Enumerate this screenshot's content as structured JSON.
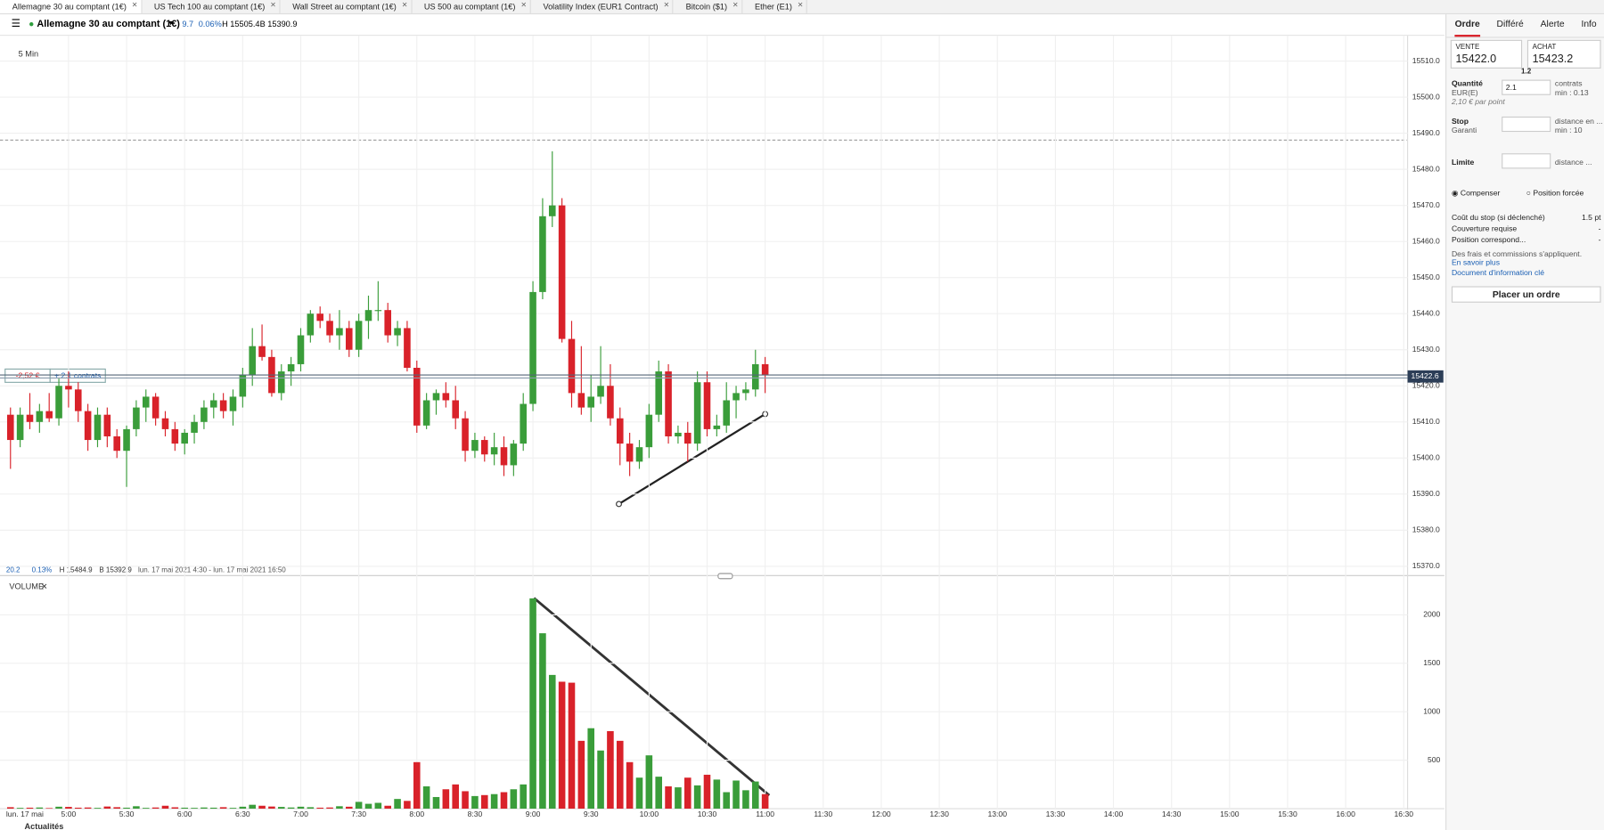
{
  "tabs": [
    "Allemagne 30 au comptant (1€)",
    "US Tech 100 au comptant (1€)",
    "Wall Street au comptant (1€)",
    "US 500 au comptant (1€)",
    "Volatility Index (EUR1 Contract)",
    "Bitcoin ($1)",
    "Ether (E1)"
  ],
  "header": {
    "instrument": "Allemagne 30 au comptant (1€)",
    "change": "9.7",
    "change_pct": "0.06%",
    "high": "H 15505.4",
    "low": "B 15390.9"
  },
  "chart": {
    "interval": "5 Min",
    "info": {
      "change": "20.2",
      "change_pct": "0.13%",
      "high": "H 15484.9",
      "low": "B 15392.9",
      "range": "lun. 17 mai 2021 4:30 - lun. 17 mai 2021 16:50"
    },
    "position": {
      "pnl": "-2,52 €",
      "size": "+ 2.1 contrats"
    },
    "current_price": 15422.6,
    "ylim": [
      15368,
      15517
    ],
    "yticks": [
      {
        "value": 15370,
        "label": "15370.0"
      },
      {
        "value": 15380,
        "label": "15380.0"
      },
      {
        "value": 15390,
        "label": "15390.0"
      },
      {
        "value": 15400,
        "label": "15400.0"
      },
      {
        "value": 15410,
        "label": "15410.0"
      },
      {
        "value": 15420,
        "label": "15420.0"
      },
      {
        "value": 15430,
        "label": "15430.0"
      },
      {
        "value": 15440,
        "label": "15440.0"
      },
      {
        "value": 15450,
        "label": "15450.0"
      },
      {
        "value": 15460,
        "label": "15460.0"
      },
      {
        "value": 15470,
        "label": "15470.0"
      },
      {
        "value": 15480,
        "label": "15480.0"
      },
      {
        "value": 15490,
        "label": "15490.0"
      },
      {
        "value": 15500,
        "label": "15500.0"
      },
      {
        "value": 15510,
        "label": "15510.0"
      }
    ],
    "xticks": [
      "5:00",
      "5:30",
      "6:00",
      "6:30",
      "7:00",
      "7:30",
      "8:00",
      "8:30",
      "9:00",
      "9:30",
      "10:00",
      "10:30",
      "11:00",
      "11:30",
      "12:00",
      "12:30",
      "13:00",
      "13:30",
      "14:00",
      "14:30",
      "15:00",
      "15:30",
      "16:00",
      "16:30"
    ],
    "candles": {
      "open": [
        15412,
        15405,
        15412,
        15410,
        15413,
        15411,
        15420,
        15419,
        15413,
        15405,
        15412,
        15406,
        15402,
        15408,
        15414,
        15417,
        15411,
        15408,
        15404,
        15407,
        15410,
        15414,
        15416,
        15413,
        15417,
        15423,
        15431,
        15428,
        15418,
        15424,
        15426,
        15434,
        15440,
        15438,
        15434,
        15436,
        15430,
        15438,
        15441,
        15441,
        15434,
        15436,
        15425,
        15409,
        15416,
        15418,
        15416,
        15411,
        15402,
        15405,
        15401,
        15403,
        15398,
        15404,
        15415,
        15446,
        15467,
        15470,
        15433,
        15418,
        15414,
        15417,
        15420,
        15411,
        15404,
        15399,
        15403,
        15412,
        15424,
        15406,
        15407,
        15404,
        15421,
        15408,
        15409,
        15416,
        15418,
        15419,
        15426
      ],
      "high": [
        15414,
        15414,
        15418,
        15415,
        15418,
        15422,
        15424,
        15421,
        15415,
        15414,
        15414,
        15408,
        15409,
        15416,
        15419,
        15418,
        15413,
        15410,
        15408,
        15412,
        15416,
        15418,
        15418,
        15419,
        15425,
        15436,
        15437,
        15430,
        15426,
        15428,
        15436,
        15441,
        15442,
        15440,
        15441,
        15438,
        15440,
        15445,
        15449,
        15443,
        15438,
        15438,
        15427,
        15418,
        15419,
        15421,
        15420,
        15413,
        15407,
        15406,
        15407,
        15406,
        15405,
        15418,
        15449,
        15472,
        15485,
        15472,
        15438,
        15431,
        15423,
        15431,
        15426,
        15414,
        15407,
        15405,
        15415,
        15427,
        15426,
        15409,
        15410,
        15424,
        15424,
        15412,
        15421,
        15420,
        15421,
        15430,
        15428
      ],
      "low": [
        15397,
        15403,
        15408,
        15407,
        15410,
        15409,
        15414,
        15410,
        15402,
        15403,
        15403,
        15400,
        15392,
        15406,
        15410,
        15409,
        15406,
        15402,
        15401,
        15404,
        15408,
        15411,
        15411,
        15409,
        15414,
        15420,
        15427,
        15417,
        15416,
        15420,
        15424,
        15432,
        15436,
        15432,
        15430,
        15428,
        15428,
        15433,
        15438,
        15432,
        15431,
        15424,
        15407,
        15408,
        15412,
        15414,
        15408,
        15399,
        15400,
        15399,
        15398,
        15395,
        15395,
        15402,
        15413,
        15444,
        15464,
        15432,
        15414,
        15412,
        15410,
        15415,
        15409,
        15398,
        15395,
        15397,
        15400,
        15410,
        15404,
        15404,
        15399,
        15402,
        15406,
        15406,
        15407,
        15411,
        15416,
        15417,
        15418
      ],
      "close": [
        15405,
        15412,
        15410,
        15413,
        15411,
        15420,
        15419,
        15413,
        15405,
        15412,
        15406,
        15402,
        15408,
        15414,
        15417,
        15411,
        15408,
        15404,
        15407,
        15410,
        15414,
        15416,
        15413,
        15417,
        15423,
        15431,
        15428,
        15418,
        15424,
        15426,
        15434,
        15440,
        15438,
        15434,
        15436,
        15430,
        15438,
        15441,
        15441,
        15434,
        15436,
        15425,
        15409,
        15416,
        15418,
        15416,
        15411,
        15402,
        15405,
        15401,
        15403,
        15398,
        15404,
        15415,
        15446,
        15467,
        15470,
        15433,
        15418,
        15414,
        15417,
        15420,
        15411,
        15404,
        15399,
        15403,
        15412,
        15424,
        15406,
        15407,
        15404,
        15421,
        15408,
        15409,
        15416,
        15418,
        15419,
        15426,
        15423
      ]
    },
    "volume": {
      "title": "VOLUME",
      "ylim": [
        0,
        2300
      ],
      "yticks": [
        500,
        1000,
        1500,
        2000
      ],
      "values": [
        15,
        8,
        10,
        12,
        6,
        20,
        18,
        10,
        12,
        8,
        22,
        15,
        10,
        25,
        8,
        12,
        30,
        14,
        10,
        8,
        12,
        10,
        15,
        8,
        20,
        40,
        30,
        22,
        18,
        12,
        20,
        15,
        10,
        12,
        25,
        20,
        70,
        50,
        60,
        30,
        100,
        80,
        480,
        230,
        120,
        200,
        250,
        180,
        130,
        140,
        150,
        170,
        200,
        250,
        2170,
        1810,
        1380,
        1310,
        1300,
        700,
        830,
        600,
        800,
        700,
        480,
        320,
        550,
        330,
        230,
        220,
        320,
        240,
        350,
        300,
        170,
        290,
        190,
        280,
        150
      ]
    },
    "footer": {
      "date": "lun. 17 mai",
      "news": "Actualités"
    }
  },
  "panel": {
    "tabs": [
      "Ordre",
      "Différé",
      "Alerte",
      "Info"
    ],
    "sell": {
      "label": "VENTE",
      "price": "15422.0"
    },
    "buy": {
      "label": "ACHAT",
      "price": "15423.2"
    },
    "spread": "1.2",
    "quantity": {
      "label": "Quantité",
      "currency": "EUR(E)",
      "value": "2.1",
      "unit": "contrats",
      "min": "min : 0.13",
      "per_point": "2,10 € par point"
    },
    "stop": {
      "label": "Stop",
      "sub": "Garanti",
      "unit": "distance en ...",
      "min": "min : 10"
    },
    "limit": {
      "label": "Limite",
      "unit": "distance ..."
    },
    "mode": [
      "Compenser",
      "Position forcée"
    ],
    "rows": [
      [
        "Coût du stop (si déclenché)",
        "1.5 pt"
      ],
      [
        "Couverture requise",
        "-"
      ],
      [
        "Position correspond...",
        "-"
      ]
    ],
    "fees": "Des frais et commissions s'appliquent.",
    "learn": "En savoir plus",
    "doc": "Document d'information clé",
    "submit": "Placer un ordre"
  }
}
